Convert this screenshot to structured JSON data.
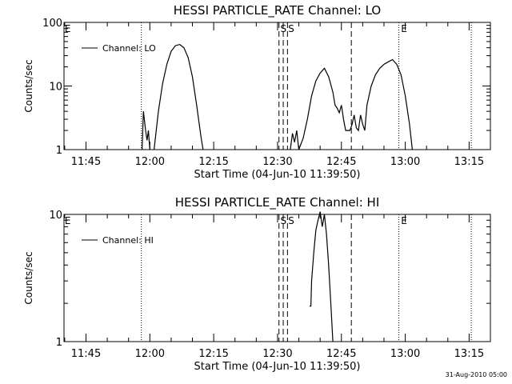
{
  "footer_timestamp": "31-Aug-2010 05:00",
  "chart_data": [
    {
      "type": "line",
      "title": "HESSI PARTICLE_RATE Channel: LO",
      "ylabel": "Counts/sec",
      "xlabel": "Start Time (04-Jun-10 11:39:50)",
      "y_scale": "log",
      "ylim": [
        1,
        100
      ],
      "y_ticks": [
        {
          "value": 1,
          "label": "1"
        },
        {
          "value": 10,
          "label": "10"
        },
        {
          "value": 100,
          "label": "100"
        }
      ],
      "xlim": [
        "11:39:50",
        "13:20:00"
      ],
      "x_ticks": [
        "11:45",
        "12:00",
        "12:15",
        "12:30",
        "12:45",
        "13:00",
        "13:15"
      ],
      "legend": {
        "position": "top-left",
        "entries": [
          "Channel: LO"
        ]
      },
      "dotted_lines": [
        "11:58:00",
        "12:58:30",
        "13:15:30"
      ],
      "dashed_lines": [
        "12:30:20",
        "12:31:20",
        "12:32:20",
        "12:47:20"
      ],
      "markers": [
        {
          "label": "E",
          "time": "11:40:00"
        },
        {
          "label": "S",
          "time": "12:30:40"
        },
        {
          "label": "S",
          "time": "12:32:30"
        },
        {
          "label": "E",
          "time": "12:59:00"
        }
      ],
      "series": [
        {
          "name": "Channel: LO",
          "segments": [
            [
              [
                "11:58:10",
                1
              ],
              [
                "11:58:30",
                4
              ],
              [
                "11:59:00",
                2
              ],
              [
                "11:59:20",
                1.4
              ],
              [
                "11:59:40",
                2
              ],
              [
                "12:00:00",
                1
              ]
            ],
            [
              [
                "12:01:00",
                1
              ],
              [
                "12:02:00",
                4
              ],
              [
                "12:03:00",
                11
              ],
              [
                "12:04:00",
                22
              ],
              [
                "12:05:00",
                35
              ],
              [
                "12:06:00",
                43
              ],
              [
                "12:07:00",
                45
              ],
              [
                "12:08:00",
                40
              ],
              [
                "12:09:00",
                28
              ],
              [
                "12:10:00",
                14
              ],
              [
                "12:11:00",
                5
              ],
              [
                "12:12:00",
                1.6
              ],
              [
                "12:12:30",
                1
              ]
            ],
            [
              [
                "12:33:00",
                1
              ],
              [
                "12:33:30",
                1.8
              ],
              [
                "12:34:00",
                1.3
              ],
              [
                "12:34:30",
                2
              ],
              [
                "12:35:00",
                1
              ],
              [
                "12:36:00",
                1.5
              ],
              [
                "12:37:00",
                3
              ],
              [
                "12:38:00",
                7
              ],
              [
                "12:39:00",
                12
              ],
              [
                "12:40:00",
                16
              ],
              [
                "12:41:00",
                19
              ],
              [
                "12:42:00",
                14
              ],
              [
                "12:43:00",
                8
              ],
              [
                "12:43:30",
                5
              ],
              [
                "12:44:00",
                4.5
              ],
              [
                "12:44:30",
                3.8
              ],
              [
                "12:45:00",
                5
              ],
              [
                "12:45:30",
                3
              ],
              [
                "12:46:00",
                2
              ],
              [
                "12:47:00",
                2
              ],
              [
                "12:47:30",
                2.5
              ],
              [
                "12:48:00",
                3.5
              ],
              [
                "12:48:30",
                2.2
              ],
              [
                "12:49:00",
                2
              ],
              [
                "12:49:30",
                3.5
              ],
              [
                "12:50:00",
                2.5
              ],
              [
                "12:50:30",
                2
              ],
              [
                "12:51:00",
                5
              ],
              [
                "12:52:00",
                10
              ],
              [
                "12:53:00",
                15
              ],
              [
                "12:54:00",
                19
              ],
              [
                "12:55:00",
                22
              ],
              [
                "12:56:00",
                24
              ],
              [
                "12:57:00",
                26
              ],
              [
                "12:58:00",
                22
              ],
              [
                "12:59:00",
                15
              ],
              [
                "13:00:00",
                7
              ],
              [
                "13:01:00",
                2.5
              ],
              [
                "13:01:40",
                1
              ]
            ]
          ]
        }
      ]
    },
    {
      "type": "line",
      "title": "HESSI PARTICLE_RATE Channel: HI",
      "ylabel": "Counts/sec",
      "xlabel": "Start Time (04-Jun-10 11:39:50)",
      "y_scale": "log",
      "ylim": [
        1,
        10
      ],
      "y_ticks": [
        {
          "value": 1,
          "label": "1"
        },
        {
          "value": 10,
          "label": "10"
        }
      ],
      "xlim": [
        "11:39:50",
        "13:20:00"
      ],
      "x_ticks": [
        "11:45",
        "12:00",
        "12:15",
        "12:30",
        "12:45",
        "13:00",
        "13:15"
      ],
      "legend": {
        "position": "top-left",
        "entries": [
          "Channel: HI"
        ]
      },
      "dotted_lines": [
        "11:58:00",
        "12:58:30",
        "13:15:30"
      ],
      "dashed_lines": [
        "12:30:20",
        "12:31:20",
        "12:32:20",
        "12:47:20"
      ],
      "markers": [
        {
          "label": "E",
          "time": "11:40:00"
        },
        {
          "label": "S",
          "time": "12:30:40"
        },
        {
          "label": "S",
          "time": "12:32:30"
        },
        {
          "label": "E",
          "time": "12:59:00"
        }
      ],
      "series": [
        {
          "name": "Channel: HI",
          "segments": [
            [
              [
                "12:37:30",
                1.9
              ],
              [
                "12:37:50",
                1.9
              ],
              [
                "12:38:00",
                3
              ],
              [
                "12:38:30",
                5
              ],
              [
                "12:39:00",
                7.5
              ],
              [
                "12:39:30",
                9
              ],
              [
                "12:40:00",
                10.5
              ],
              [
                "12:40:30",
                8
              ],
              [
                "12:41:00",
                10
              ],
              [
                "12:41:30",
                7
              ],
              [
                "12:42:00",
                4
              ],
              [
                "12:42:30",
                2
              ],
              [
                "12:43:00",
                1
              ]
            ]
          ]
        }
      ]
    }
  ]
}
